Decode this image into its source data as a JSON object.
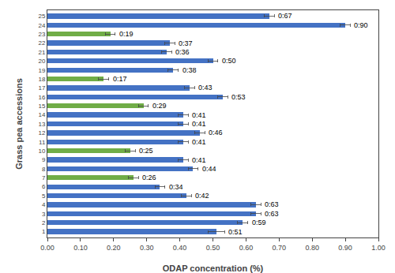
{
  "chart_data": {
    "type": "bar",
    "orientation": "horizontal",
    "categories": [
      1,
      2,
      3,
      4,
      5,
      6,
      7,
      8,
      9,
      10,
      11,
      12,
      13,
      14,
      15,
      16,
      17,
      18,
      19,
      20,
      21,
      22,
      23,
      24,
      25
    ],
    "values": [
      0.51,
      0.59,
      0.63,
      0.63,
      0.42,
      0.34,
      0.26,
      0.44,
      0.41,
      0.25,
      0.41,
      0.46,
      0.41,
      0.41,
      0.29,
      0.53,
      0.43,
      0.17,
      0.38,
      0.5,
      0.36,
      0.37,
      0.19,
      0.9,
      0.67
    ],
    "value_labels": [
      "0:51",
      "0:59",
      "0:63",
      "0:63",
      "0:42",
      "0:34",
      "0:26",
      "0:44",
      "0:41",
      "0:25",
      "0:41",
      "0:46",
      "0:41",
      "0:41",
      "0:29",
      "0:53",
      "0:43",
      "0:17",
      "0:38",
      "0:50",
      "0:36",
      "0:37",
      "0:19",
      "0:90",
      "0:67"
    ],
    "data_labels": true,
    "errors": [
      0.025,
      0.015,
      0.015,
      0.015,
      0.015,
      0.015,
      0.015,
      0.015,
      0.015,
      0.015,
      0.015,
      0.015,
      0.015,
      0.015,
      0.015,
      0.015,
      0.015,
      0.015,
      0.015,
      0.015,
      0.015,
      0.015,
      0.015,
      0.015,
      0.015
    ],
    "colors": [
      "#4472C4",
      "#4472C4",
      "#4472C4",
      "#4472C4",
      "#4472C4",
      "#4472C4",
      "#70AD47",
      "#4472C4",
      "#4472C4",
      "#70AD47",
      "#4472C4",
      "#4472C4",
      "#4472C4",
      "#4472C4",
      "#70AD47",
      "#4472C4",
      "#4472C4",
      "#70AD47",
      "#4472C4",
      "#4472C4",
      "#4472C4",
      "#4472C4",
      "#70AD47",
      "#4472C4",
      "#4472C4"
    ],
    "x_label": "ODAP concentration (%)",
    "y_label": "Grass pea accessions",
    "xlim": [
      0.0,
      1.0
    ],
    "xticks": [
      {
        "value": 0.0,
        "label": "0.00"
      },
      {
        "value": 0.1,
        "label": "0.10"
      },
      {
        "value": 0.2,
        "label": "0.20"
      },
      {
        "value": 0.3,
        "label": "0.30"
      },
      {
        "value": 0.4,
        "label": "0.40"
      },
      {
        "value": 0.5,
        "label": "0.50"
      },
      {
        "value": 0.6,
        "label": "0.60"
      },
      {
        "value": 0.7,
        "label": "0.70"
      },
      {
        "value": 0.8,
        "label": "0.80"
      },
      {
        "value": 0.9,
        "label": "0.90"
      },
      {
        "value": 1.0,
        "label": "1.00"
      }
    ],
    "ylim": [
      0.35,
      25.65
    ],
    "yticks": [
      1,
      2,
      3,
      4,
      5,
      6,
      7,
      8,
      9,
      10,
      11,
      12,
      13,
      14,
      15,
      16,
      17,
      18,
      19,
      20,
      21,
      22,
      23,
      24,
      25
    ],
    "grid": false
  }
}
